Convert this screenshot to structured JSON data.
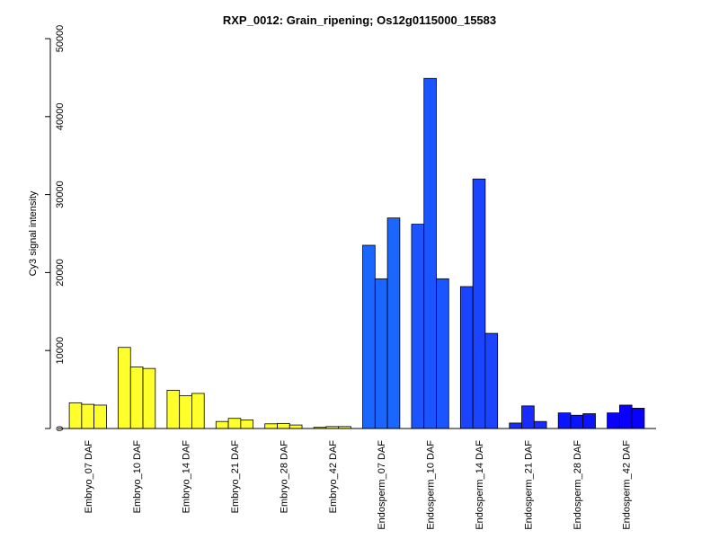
{
  "chart_data": {
    "type": "bar",
    "title": "RXP_0012: Grain_ripening; Os12g0115000_15583",
    "xlabel": "",
    "ylabel": "Cy3 signal intensity",
    "ylim": [
      0,
      50000
    ],
    "yticks": [
      0,
      10000,
      20000,
      30000,
      40000,
      50000
    ],
    "grid": false,
    "groups": [
      {
        "label": "Embryo_07 DAF",
        "color": "#ffff2b",
        "values": [
          3300,
          3100,
          3000
        ]
      },
      {
        "label": "Embryo_10 DAF",
        "color": "#ffff2b",
        "values": [
          10400,
          7900,
          7700
        ]
      },
      {
        "label": "Embryo_14 DAF",
        "color": "#ffff2b",
        "values": [
          4900,
          4200,
          4500
        ]
      },
      {
        "label": "Embryo_21 DAF",
        "color": "#ffff2b",
        "values": [
          900,
          1300,
          1100
        ]
      },
      {
        "label": "Embryo_28 DAF",
        "color": "#ffff2b",
        "values": [
          600,
          650,
          450
        ]
      },
      {
        "label": "Embryo_42 DAF",
        "color": "#ffff2b",
        "values": [
          150,
          250,
          250
        ]
      },
      {
        "label": "Endosperm_07 DAF",
        "color": "#1a66ff",
        "values": [
          23500,
          19200,
          27000
        ]
      },
      {
        "label": "Endosperm_10 DAF",
        "color": "#1a55ff",
        "values": [
          26200,
          44900,
          19200
        ]
      },
      {
        "label": "Endosperm_14 DAF",
        "color": "#1a44ff",
        "values": [
          18200,
          32000,
          12200
        ]
      },
      {
        "label": "Endosperm_21 DAF",
        "color": "#1a2bff",
        "values": [
          700,
          2900,
          900
        ]
      },
      {
        "label": "Endosperm_28 DAF",
        "color": "#0a14ff",
        "values": [
          2000,
          1700,
          1900
        ]
      },
      {
        "label": "Endosperm_42 DAF",
        "color": "#0a00ff",
        "values": [
          2000,
          3000,
          2600
        ]
      }
    ]
  }
}
